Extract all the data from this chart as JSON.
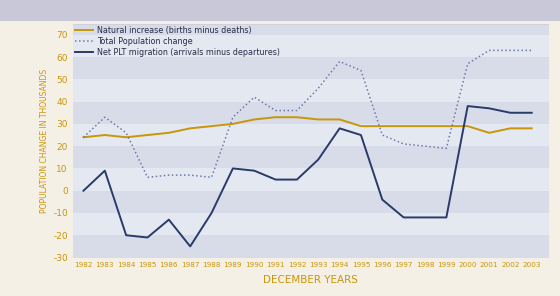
{
  "years": [
    1982,
    1983,
    1984,
    1985,
    1986,
    1987,
    1988,
    1989,
    1990,
    1991,
    1992,
    1993,
    1994,
    1995,
    1996,
    1997,
    1998,
    1999,
    2000,
    2001,
    2002,
    2003
  ],
  "natural_increase": [
    24,
    25,
    24,
    25,
    26,
    28,
    29,
    30,
    32,
    33,
    33,
    32,
    32,
    29,
    29,
    29,
    29,
    29,
    29,
    26,
    28,
    28
  ],
  "total_population_change": [
    24,
    33,
    26,
    6,
    7,
    7,
    6,
    33,
    42,
    36,
    36,
    46,
    58,
    54,
    25,
    21,
    20,
    19,
    57,
    63,
    63,
    63
  ],
  "net_plt_migration": [
    0,
    9,
    -20,
    -21,
    -13,
    -25,
    -10,
    10,
    9,
    5,
    5,
    14,
    28,
    25,
    -4,
    -12,
    -12,
    -12,
    38,
    37,
    35,
    35
  ],
  "natural_color": "#c8960a",
  "total_pop_color": "#6b7bab",
  "net_plt_color": "#2a3a6a",
  "fig_bg_color": "#f5f0e5",
  "header_color": "#c8c8d8",
  "stripe_colors": [
    "#d8dce8",
    "#e4e8f0"
  ],
  "xlabel_color": "#c8960a",
  "ylabel_color": "#c8960a",
  "tick_color": "#c8960a",
  "xlabel": "DECEMBER YEARS",
  "ylabel": "POPULATION CHANGE IN THOUSANDS",
  "ylim": [
    -30,
    75
  ],
  "yticks": [
    -30,
    -20,
    -10,
    0,
    10,
    20,
    30,
    40,
    50,
    60,
    70
  ],
  "legend_natural": "Natural increase (births minus deaths)",
  "legend_total": "Total Population change",
  "legend_net": "Net PLT migration (arrivals minus departures)"
}
